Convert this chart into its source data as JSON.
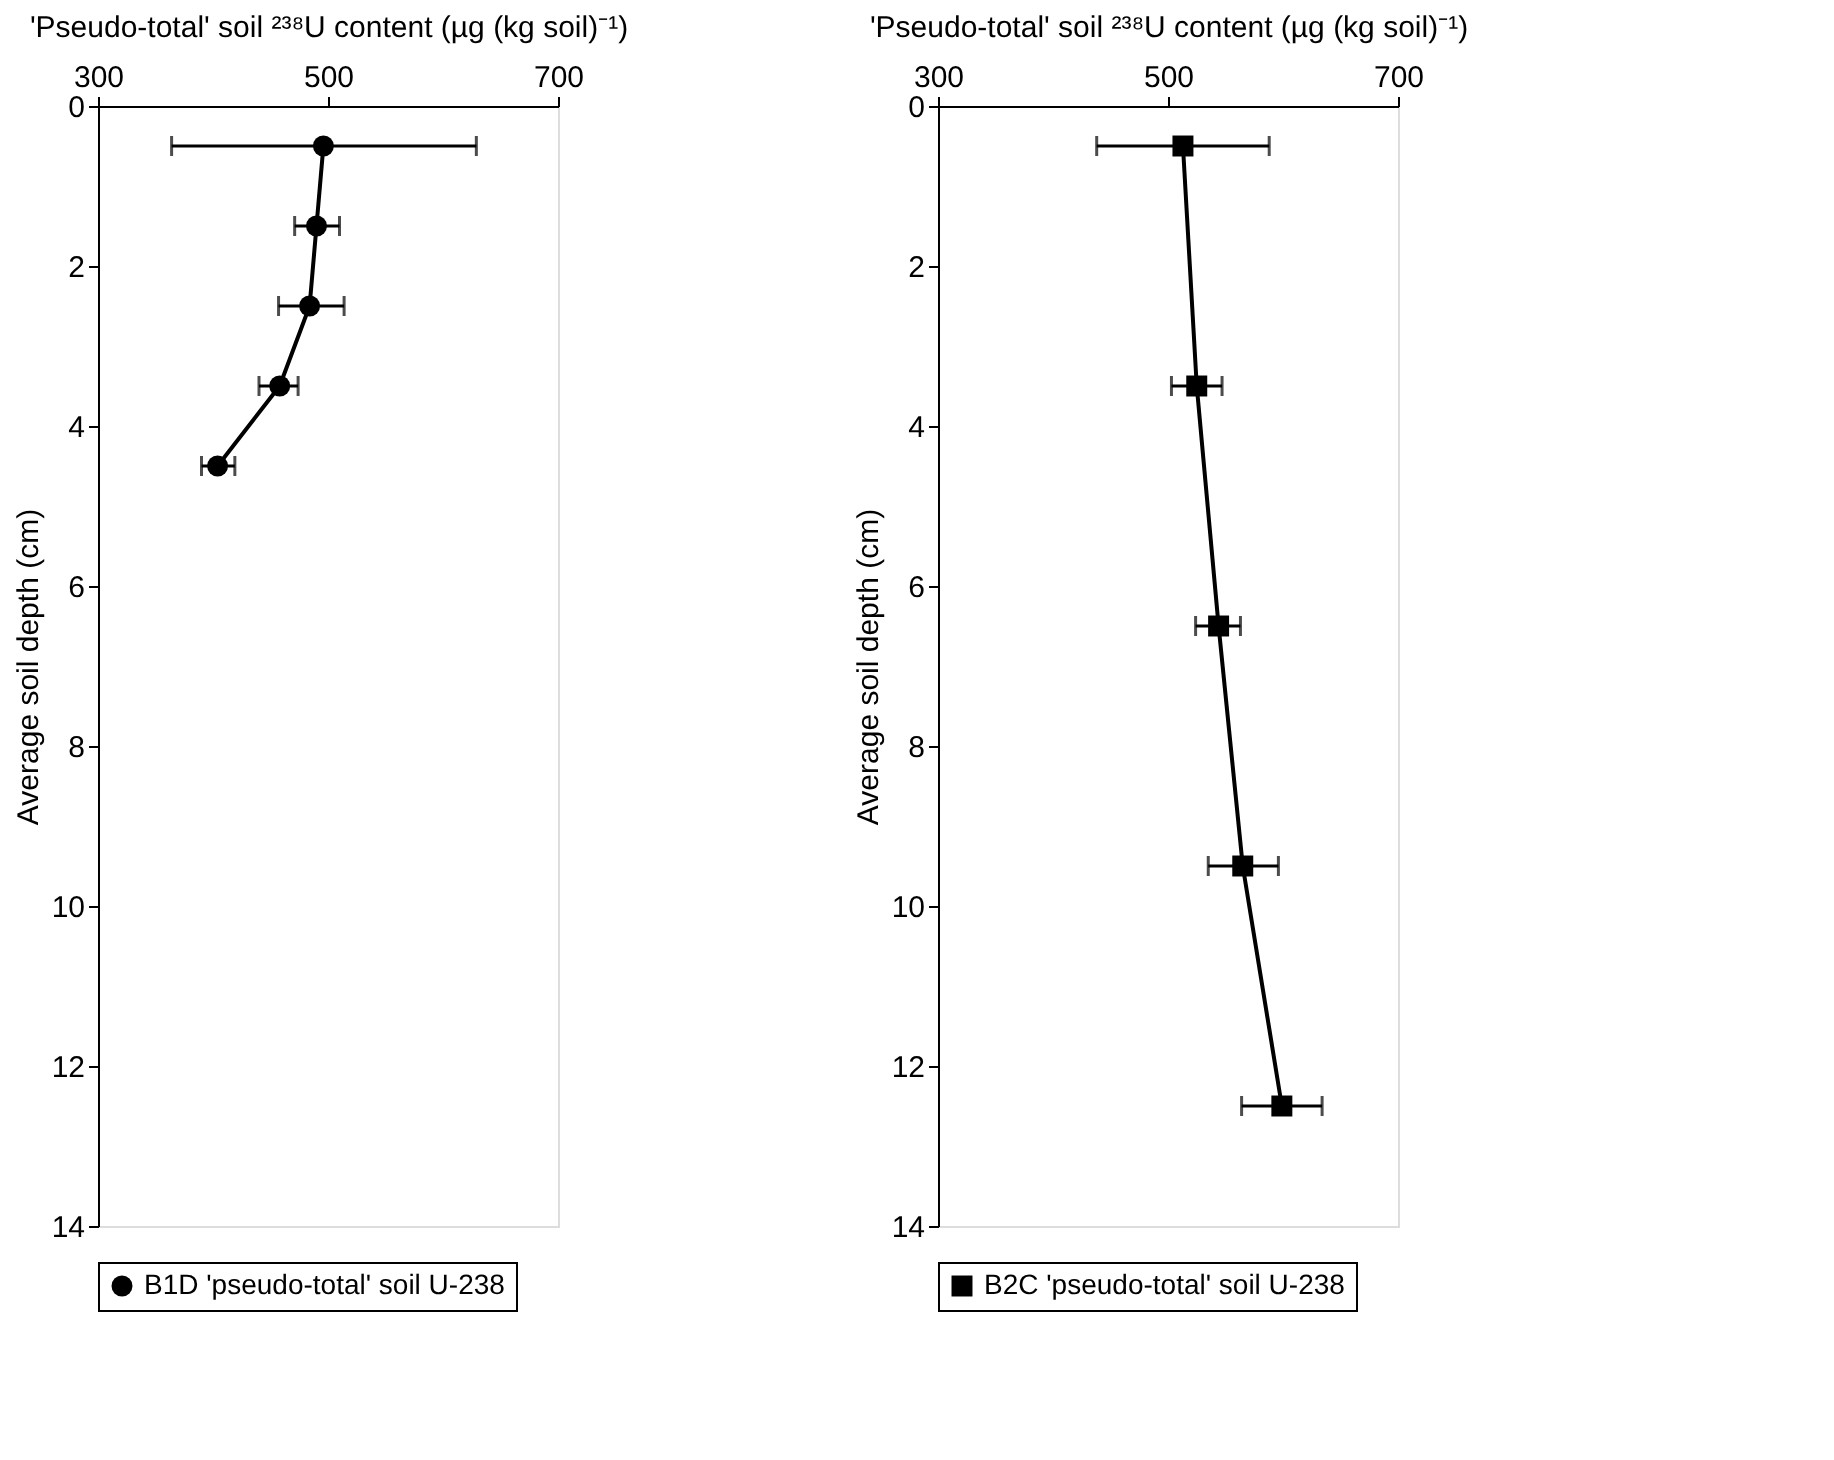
{
  "chart_data": [
    {
      "type": "line",
      "xlabel": "'Pseudo-total' soil ²³⁸U content (µg (kg soil)⁻¹)",
      "ylabel": "Average soil depth (cm)",
      "xlim": [
        300,
        700
      ],
      "xticks": [
        300,
        500,
        700
      ],
      "ylim": [
        14,
        0
      ],
      "yticks": [
        0,
        2,
        4,
        6,
        8,
        10,
        12,
        14
      ],
      "grid": false,
      "legend": "bottom",
      "marker": "circle",
      "line_style": "solid",
      "series": [
        {
          "name": "B1D 'pseudo-total' soil U-238",
          "color": "#000000",
          "x": [
            496,
            490,
            484,
            458,
            404
          ],
          "values": [
            0.5,
            1.5,
            2.5,
            3.5,
            4.5
          ],
          "xerrors": [
            [
              364,
              629
            ],
            [
              471,
              510
            ],
            [
              457,
              514
            ],
            [
              440,
              474
            ],
            [
              390,
              419
            ]
          ]
        }
      ]
    },
    {
      "type": "line",
      "xlabel": "'Pseudo-total' soil ²³⁸U content (µg (kg soil)⁻¹)",
      "ylabel": "Average soil depth (cm)",
      "xlim": [
        300,
        700
      ],
      "xticks": [
        300,
        500,
        700
      ],
      "ylim": [
        14,
        0
      ],
      "yticks": [
        0,
        2,
        4,
        6,
        8,
        10,
        12,
        14
      ],
      "grid": false,
      "legend": "bottom",
      "marker": "square",
      "line_style": "solid",
      "series": [
        {
          "name": "B2C 'pseudo-total' soil U-238",
          "color": "#000000",
          "x": [
            513,
            525,
            544,
            565,
            599
          ],
          "values": [
            0.5,
            3.5,
            6.5,
            9.5,
            12.5
          ],
          "xerrors": [
            [
              438,
              588
            ],
            [
              503,
              547
            ],
            [
              524,
              563
            ],
            [
              535,
              596
            ],
            [
              564,
              634
            ]
          ]
        }
      ]
    }
  ]
}
